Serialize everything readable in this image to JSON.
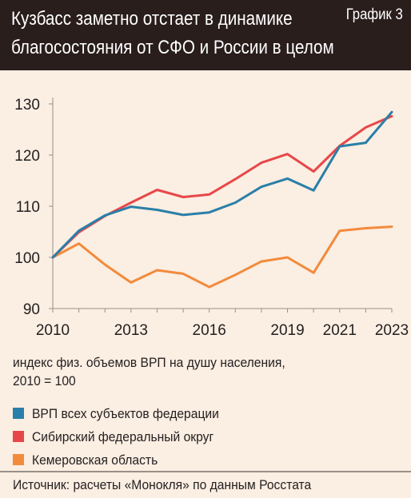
{
  "header": {
    "title_line1": "Кузбасс заметно отстает в динамике",
    "title_line2": "благосостояния от СФО и России в целом",
    "figure_label": "График 3"
  },
  "note": {
    "line1": "индекс физ. объемов ВРП на душу населения,",
    "line2": "2010 = 100"
  },
  "source": "Источник: расчеты «Монокля» по данным Росстата",
  "chart_data": {
    "type": "line",
    "title": "",
    "xlabel": "",
    "ylabel": "",
    "x": [
      2010,
      2011,
      2012,
      2013,
      2014,
      2015,
      2016,
      2017,
      2018,
      2019,
      2020,
      2021,
      2022,
      2023
    ],
    "x_ticks": [
      2010,
      2013,
      2016,
      2019,
      2021,
      2023
    ],
    "y_ticks": [
      90,
      100,
      110,
      120,
      130
    ],
    "xlim": [
      2010,
      2023
    ],
    "ylim": [
      90,
      130
    ],
    "grid": false,
    "legend_position": "bottom",
    "series": [
      {
        "name": "ВРП всех субъектов федерации",
        "color": "#2a7fa8",
        "values": [
          100,
          105.2,
          108.2,
          109.9,
          109.3,
          108.3,
          108.8,
          110.7,
          113.8,
          115.4,
          113.1,
          121.7,
          122.4,
          128.4
        ]
      },
      {
        "name": "Сибирский федеральный округ",
        "color": "#e8474a",
        "values": [
          100,
          104.9,
          108.1,
          110.7,
          113.2,
          111.8,
          112.3,
          115.3,
          118.5,
          120.2,
          116.8,
          121.8,
          125.4,
          127.6
        ]
      },
      {
        "name": "Кемеровская область",
        "color": "#f28b3c",
        "values": [
          100,
          102.7,
          98.6,
          95.1,
          97.5,
          96.8,
          94.2,
          96.6,
          99.2,
          100,
          97,
          105.2,
          105.7,
          106
        ]
      }
    ]
  }
}
